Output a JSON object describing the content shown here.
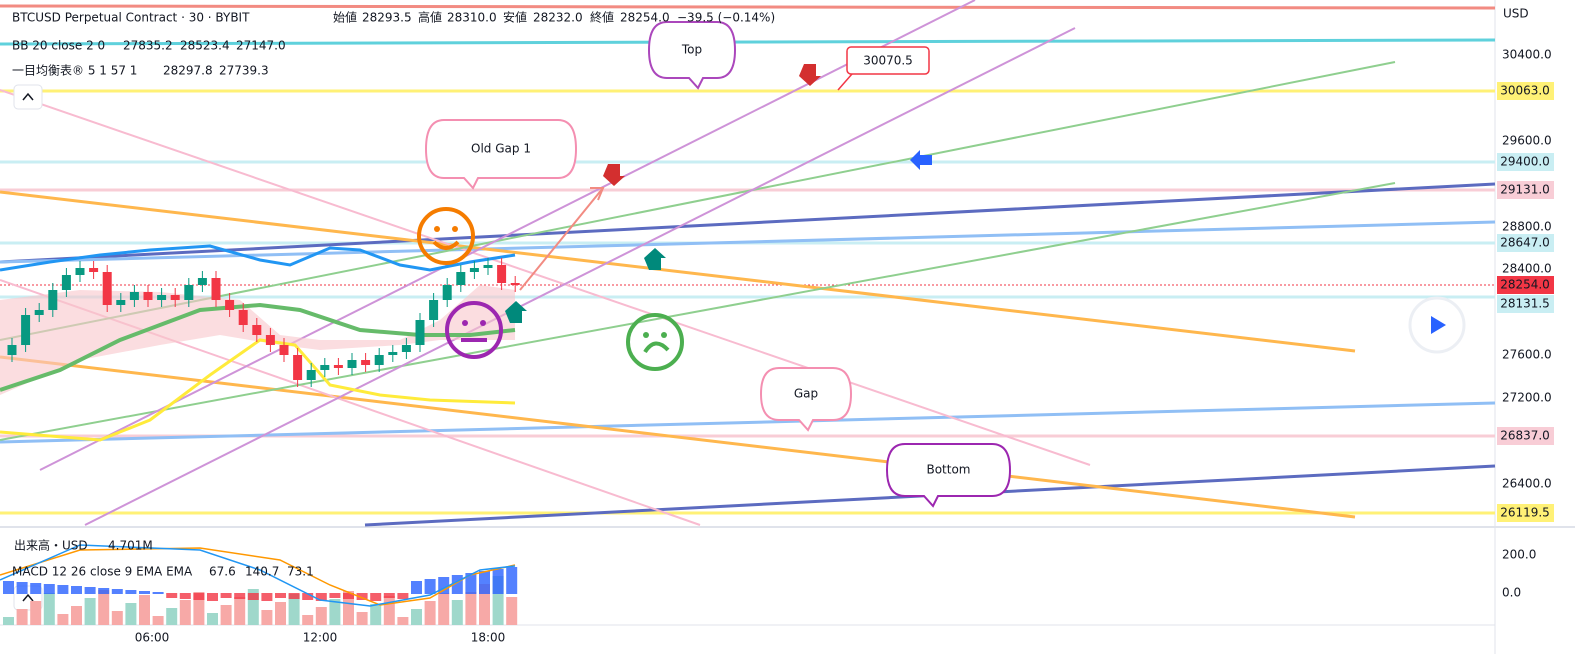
{
  "header": {
    "title": "BTCUSD Perpetual Contract · 30 · BYBIT",
    "ohlc": [
      {
        "label": "始値",
        "value": "28293.5"
      },
      {
        "label": "高値",
        "value": "28310.0"
      },
      {
        "label": "安値",
        "value": "28232.0"
      },
      {
        "label": "終値",
        "value": "28254.0"
      }
    ],
    "change": "−39.5 (−0.14%)"
  },
  "indicators": {
    "bb": {
      "name": "BB 20 close 2 0",
      "values": [
        "27835.2",
        "28523.4",
        "27147.0"
      ]
    },
    "ichimoku": {
      "name": "一目均衡表® 5 1 57 1",
      "values": [
        "28297.8",
        "27739.3"
      ]
    }
  },
  "price_axis": {
    "currency": "USD",
    "ticks": [
      "30400.0",
      "29600.0",
      "28800.0",
      "28400.0",
      "27600.0",
      "27200.0",
      "26400.0"
    ],
    "tags": [
      "30063.0",
      "29400.0",
      "29131.0",
      "28647.0",
      "28254.0",
      "28131.5",
      "26837.0",
      "26119.5"
    ]
  },
  "annotations": [
    "Top",
    "30070.5",
    "Old Gap 1",
    "Gap",
    "Bottom"
  ],
  "lower_pane": {
    "volume": {
      "name": "出来高・USD",
      "value": "4.701M"
    },
    "macd": {
      "name": "MACD 12 26 close 9 EMA EMA",
      "values": [
        "67.6",
        "140.7",
        "73.1"
      ]
    },
    "axis": [
      "200.0",
      "0.0"
    ]
  },
  "time_axis": [
    "06:00",
    "12:00",
    "18:00"
  ]
}
